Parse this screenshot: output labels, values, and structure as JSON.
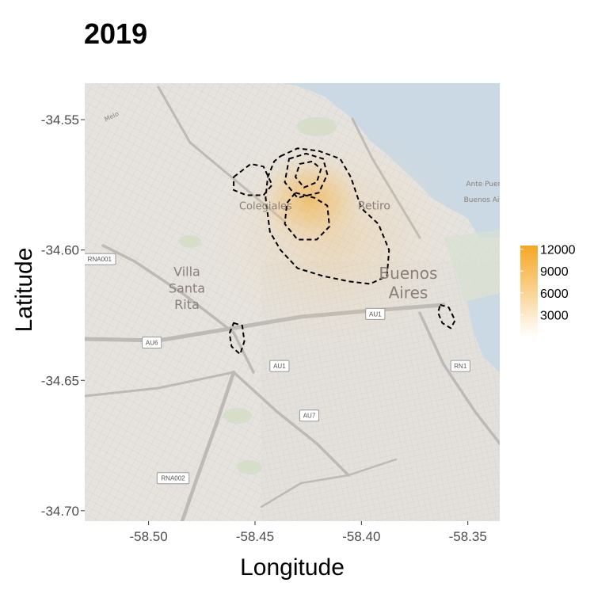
{
  "title": "2019",
  "chart_data": {
    "type": "map-density",
    "title": "2019",
    "xlabel": "Longitude",
    "ylabel": "Latitude",
    "xlim": [
      -58.53,
      -58.335
    ],
    "ylim": [
      -34.704,
      -34.536
    ],
    "x_ticks": [
      -58.5,
      -58.45,
      -58.4,
      -58.35
    ],
    "x_tick_labels": [
      "-58.50",
      "-58.45",
      "-58.40",
      "-58.35"
    ],
    "y_ticks": [
      -34.55,
      -34.6,
      -34.65,
      -34.7
    ],
    "y_tick_labels": [
      "-34.55",
      "-34.60",
      "-34.65",
      "-34.70"
    ],
    "legend": {
      "placement": "right",
      "values": [
        3000,
        6000,
        9000,
        12000
      ],
      "labels": [
        "3000",
        "6000",
        "9000",
        "12000"
      ],
      "color_low": "#ffffff",
      "color_high": "#f5a623"
    },
    "density_peak": {
      "x": -58.424,
      "y": -34.573,
      "value": 12000
    },
    "contours": [
      {
        "id": "main",
        "points": [
          [
            -58.438,
            -34.564
          ],
          [
            -58.43,
            -34.561
          ],
          [
            -58.42,
            -34.562
          ],
          [
            -58.41,
            -34.565
          ],
          [
            -58.405,
            -34.572
          ],
          [
            -58.4,
            -34.584
          ],
          [
            -58.392,
            -34.59
          ],
          [
            -58.387,
            -34.6
          ],
          [
            -58.388,
            -34.61
          ],
          [
            -58.396,
            -34.613
          ],
          [
            -58.406,
            -34.612
          ],
          [
            -58.418,
            -34.61
          ],
          [
            -58.43,
            -34.607
          ],
          [
            -58.438,
            -34.6
          ],
          [
            -58.443,
            -34.593
          ],
          [
            -58.445,
            -34.58
          ],
          [
            -58.444,
            -34.572
          ],
          [
            -58.441,
            -34.566
          ]
        ]
      },
      {
        "id": "west-lobe",
        "points": [
          [
            -58.46,
            -34.572
          ],
          [
            -58.452,
            -34.567
          ],
          [
            -58.446,
            -34.568
          ],
          [
            -58.442,
            -34.575
          ],
          [
            -58.446,
            -34.579
          ],
          [
            -58.454,
            -34.579
          ],
          [
            -58.46,
            -34.577
          ]
        ]
      },
      {
        "id": "inner-1",
        "points": [
          [
            -58.434,
            -34.565
          ],
          [
            -58.426,
            -34.563
          ],
          [
            -58.418,
            -34.565
          ],
          [
            -58.416,
            -34.571
          ],
          [
            -58.42,
            -34.578
          ],
          [
            -58.43,
            -34.58
          ],
          [
            -58.436,
            -34.574
          ]
        ]
      },
      {
        "id": "inner-2",
        "points": [
          [
            -58.431,
            -34.578
          ],
          [
            -58.422,
            -34.58
          ],
          [
            -58.416,
            -34.583
          ],
          [
            -58.415,
            -34.591
          ],
          [
            -58.421,
            -34.596
          ],
          [
            -58.43,
            -34.596
          ],
          [
            -58.436,
            -34.59
          ],
          [
            -58.435,
            -34.582
          ]
        ]
      },
      {
        "id": "peak-ring",
        "points": [
          [
            -58.429,
            -34.567
          ],
          [
            -58.423,
            -34.566
          ],
          [
            -58.419,
            -34.569
          ],
          [
            -58.421,
            -34.574
          ],
          [
            -58.427,
            -34.576
          ],
          [
            -58.431,
            -34.572
          ]
        ]
      },
      {
        "id": "small-west",
        "points": [
          [
            -58.46,
            -34.628
          ],
          [
            -58.456,
            -34.629
          ],
          [
            -58.455,
            -34.635
          ],
          [
            -58.457,
            -34.64
          ],
          [
            -58.461,
            -34.637
          ],
          [
            -58.462,
            -34.632
          ]
        ]
      },
      {
        "id": "small-east",
        "points": [
          [
            -58.363,
            -34.621
          ],
          [
            -58.359,
            -34.622
          ],
          [
            -58.356,
            -34.627
          ],
          [
            -58.358,
            -34.63
          ],
          [
            -58.362,
            -34.628
          ],
          [
            -58.364,
            -34.624
          ]
        ]
      }
    ]
  },
  "map": {
    "place_labels": [
      {
        "text": "Colegiales",
        "lon": -58.445,
        "lat": -34.5845,
        "size": 13
      },
      {
        "text": "Retiro",
        "lon": -58.394,
        "lat": -34.5845,
        "size": 14
      },
      {
        "text": "Villa",
        "lon": -58.482,
        "lat": -34.61,
        "size": 16
      },
      {
        "text": "Santa",
        "lon": -58.482,
        "lat": -34.6163,
        "size": 16
      },
      {
        "text": "Rita",
        "lon": -58.482,
        "lat": -34.6226,
        "size": 16
      },
      {
        "text": "Buenos",
        "lon": -58.378,
        "lat": -34.611,
        "size": 20
      },
      {
        "text": "Aires",
        "lon": -58.378,
        "lat": -34.6185,
        "size": 20
      },
      {
        "text": "Ante Puerto",
        "lon": -58.341,
        "lat": -34.5755,
        "size": 9
      },
      {
        "text": "Buenos Aires",
        "lon": -58.341,
        "lat": -34.5815,
        "size": 9
      },
      {
        "text": "Melo",
        "lon": -58.517,
        "lat": -34.5495,
        "size": 8
      }
    ],
    "road_shields": [
      {
        "text": "RNA001",
        "lon": -58.523,
        "lat": -34.6035
      },
      {
        "text": "AU6",
        "lon": -58.4985,
        "lat": -34.6355
      },
      {
        "text": "AU1",
        "lon": -58.4385,
        "lat": -34.6445
      },
      {
        "text": "AU1",
        "lon": -58.3935,
        "lat": -34.6245
      },
      {
        "text": "AU7",
        "lon": -58.4245,
        "lat": -34.6635
      },
      {
        "text": "RNA002",
        "lon": -58.4885,
        "lat": -34.6875
      },
      {
        "text": "RN1",
        "lon": -58.3535,
        "lat": -34.6445
      }
    ]
  }
}
